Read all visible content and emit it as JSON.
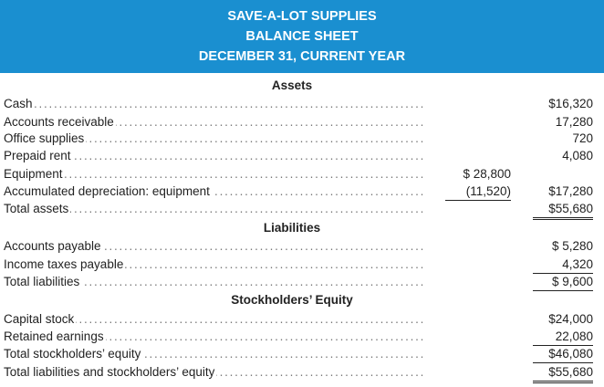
{
  "header": {
    "company": "SAVE-A-LOT SUPPLIES",
    "statement": "BALANCE SHEET",
    "date": "DECEMBER 31, CURRENT YEAR"
  },
  "assets": {
    "title": "Assets",
    "rows": [
      {
        "label": "Cash",
        "col2": "$16,320"
      },
      {
        "label": "Accounts receivable",
        "col2": "17,280"
      },
      {
        "label": "Office supplies",
        "col2": "720"
      },
      {
        "label": "Prepaid rent",
        "col2": "4,080"
      },
      {
        "label": "Equipment",
        "col1": "$ 28,800"
      },
      {
        "label": "Accumulated depreciation: equipment",
        "col1": "(11,520)",
        "col2": "$17,280"
      },
      {
        "label": "Total assets",
        "col2": "$55,680"
      }
    ]
  },
  "liabilities": {
    "title": "Liabilities",
    "rows": [
      {
        "label": "Accounts payable",
        "col2": "$ 5,280"
      },
      {
        "label": "Income taxes payable",
        "col2": "4,320"
      },
      {
        "label": "Total liabilities",
        "col2": "$ 9,600"
      }
    ]
  },
  "equity": {
    "title": "Stockholders’ Equity",
    "rows": [
      {
        "label": "Capital stock",
        "col2": "$24,000"
      },
      {
        "label": "Retained earnings",
        "col2": "22,080"
      },
      {
        "label": "Total stockholders’ equity",
        "col2": "$46,080"
      },
      {
        "label": "Total liabilities and stockholders’ equity",
        "col2": "$55,680"
      }
    ]
  }
}
